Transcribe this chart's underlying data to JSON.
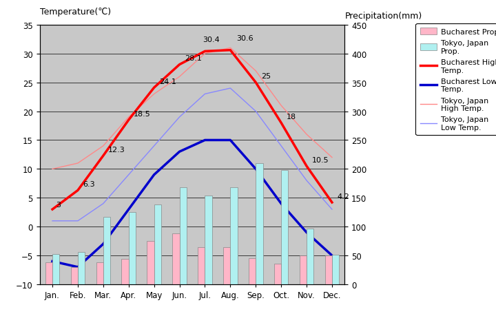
{
  "months": [
    "Jan.",
    "Feb.",
    "Mar.",
    "Apr.",
    "May",
    "Jun.",
    "Jul.",
    "Aug.",
    "Sep.",
    "Oct.",
    "Nov.",
    "Dec."
  ],
  "bucharest_high": [
    3,
    6.3,
    12.3,
    18.5,
    24.1,
    28.1,
    30.4,
    30.6,
    25,
    18,
    10.5,
    4.2
  ],
  "bucharest_low": [
    -6,
    -7,
    -3,
    3,
    9,
    13,
    15,
    15,
    10,
    4,
    -1,
    -5
  ],
  "tokyo_high": [
    10,
    11,
    14,
    19,
    23,
    26,
    30,
    31,
    27,
    21,
    16,
    12
  ],
  "tokyo_low": [
    1,
    1,
    4,
    9,
    14,
    19,
    23,
    24,
    20,
    14,
    8,
    3
  ],
  "bucharest_precip_bar": [
    38,
    30,
    38,
    44,
    75,
    88,
    65,
    65,
    45,
    36,
    50,
    50
  ],
  "tokyo_precip_bar": [
    52,
    56,
    117,
    125,
    138,
    168,
    154,
    168,
    210,
    198,
    97,
    51
  ],
  "bucharest_high_labels": [
    "3",
    "6.3",
    "12.3",
    "18.5",
    "24.1",
    "28.1",
    "30.4",
    "30.6",
    "25",
    "18",
    "10.5",
    "4.2"
  ],
  "label_offsets_x": [
    0.15,
    0.2,
    0.2,
    0.2,
    0.2,
    0.2,
    -0.1,
    0.25,
    0.2,
    0.2,
    0.2,
    0.2
  ],
  "label_offsets_y": [
    0.3,
    0.5,
    0.5,
    0.5,
    0.5,
    0.5,
    1.5,
    1.5,
    0.5,
    0.5,
    0.5,
    0.5
  ],
  "temp_ylim": [
    -10,
    35
  ],
  "precip_ylim": [
    0,
    450
  ],
  "plot_bg_color": "#c8c8c8",
  "bucharest_high_color": "#ff0000",
  "bucharest_low_color": "#0000cc",
  "tokyo_high_color": "#ff8888",
  "tokyo_low_color": "#8888ff",
  "bucharest_precip_color": "#ffb6c8",
  "tokyo_precip_color": "#b0f0f0",
  "grid_color": "#000000",
  "title_left": "Temperature(℃)",
  "title_right": "Precipitation(mm)"
}
